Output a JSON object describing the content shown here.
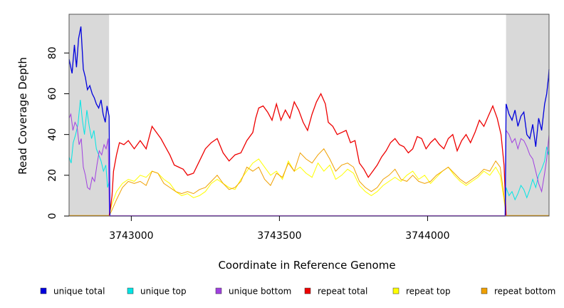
{
  "chart_data": {
    "type": "line",
    "title": "",
    "xlabel": "Coordinate in Reference Genome",
    "ylabel": "Read Coverage Depth",
    "xlim": [
      3742790,
      3744410
    ],
    "ylim": [
      0,
      99
    ],
    "x_ticks": [
      3743000,
      3743500,
      3744000
    ],
    "y_ticks": [
      0,
      20,
      40,
      60,
      80
    ],
    "shaded_regions": [
      [
        3742790,
        3742925
      ],
      [
        3744265,
        3744410
      ]
    ],
    "grid": false,
    "legend_position": "bottom",
    "colors": {
      "unique_total": "#0000dd",
      "unique_top": "#00e5e5",
      "unique_bottom": "#a040e0",
      "repeat_total": "#ee0000",
      "repeat_top": "#ffff00",
      "repeat_bottom": "#f0a000",
      "shade": "#d9d9d9"
    },
    "series": [
      {
        "name": "unique total",
        "key": "unique_total",
        "x": [
          3742790,
          3742800,
          3742808,
          3742815,
          3742822,
          3742830,
          3742838,
          3742845,
          3742852,
          3742860,
          3742868,
          3742875,
          3742882,
          3742890,
          3742898,
          3742905,
          3742912,
          3742918,
          3742925,
          3742928,
          3742932,
          3744262,
          3744265,
          3744275,
          3744285,
          3744295,
          3744305,
          3744315,
          3744325,
          3744335,
          3744345,
          3744355,
          3744365,
          3744375,
          3744385,
          3744395,
          3744402,
          3744408,
          3744410
        ],
        "y": [
          77,
          70,
          84,
          73,
          87,
          93,
          72,
          68,
          62,
          64,
          60,
          58,
          55,
          53,
          57,
          50,
          46,
          54,
          49,
          0,
          0,
          0,
          55,
          50,
          47,
          52,
          44,
          49,
          51,
          40,
          38,
          45,
          34,
          48,
          42,
          55,
          60,
          68,
          72
        ]
      },
      {
        "name": "unique top",
        "key": "unique_top",
        "x": [
          3742790,
          3742797,
          3742804,
          3742812,
          3742820,
          3742828,
          3742835,
          3742842,
          3742850,
          3742858,
          3742866,
          3742874,
          3742882,
          3742890,
          3742898,
          3742906,
          3742914,
          3742920,
          3742925,
          3742928,
          3742932,
          3744262,
          3744265,
          3744275,
          3744285,
          3744295,
          3744305,
          3744315,
          3744325,
          3744335,
          3744345,
          3744355,
          3744365,
          3744375,
          3744385,
          3744395,
          3744402,
          3744408,
          3744410
        ],
        "y": [
          29,
          26,
          36,
          40,
          45,
          57,
          47,
          40,
          52,
          44,
          38,
          42,
          33,
          30,
          27,
          22,
          25,
          14,
          17,
          0,
          0,
          0,
          14,
          10,
          12,
          8,
          11,
          15,
          13,
          9,
          13,
          18,
          14,
          20,
          23,
          27,
          34,
          30,
          33
        ]
      },
      {
        "name": "unique bottom",
        "key": "unique_bottom",
        "x": [
          3742790,
          3742796,
          3742803,
          3742810,
          3742817,
          3742824,
          3742831,
          3742838,
          3742845,
          3742852,
          3742860,
          3742868,
          3742876,
          3742884,
          3742892,
          3742900,
          3742908,
          3742915,
          3742922,
          3742926,
          3742930,
          3744262,
          3744265,
          3744275,
          3744285,
          3744295,
          3744305,
          3744315,
          3744325,
          3744335,
          3744345,
          3744355,
          3744365,
          3744375,
          3744385,
          3744395,
          3744402,
          3744408,
          3744410
        ],
        "y": [
          48,
          50,
          42,
          46,
          44,
          35,
          38,
          24,
          20,
          14,
          13,
          19,
          17,
          25,
          32,
          30,
          35,
          33,
          38,
          0,
          0,
          0,
          42,
          40,
          36,
          38,
          33,
          38,
          37,
          34,
          30,
          28,
          22,
          16,
          12,
          21,
          28,
          37,
          40
        ]
      },
      {
        "name": "repeat total",
        "key": "repeat_total",
        "x": [
          3742925,
          3742930,
          3742935,
          3742940,
          3742950,
          3742960,
          3742975,
          3742990,
          3743010,
          3743030,
          3743050,
          3743070,
          3743085,
          3743100,
          3743115,
          3743130,
          3743145,
          3743160,
          3743175,
          3743190,
          3743210,
          3743230,
          3743250,
          3743270,
          3743290,
          3743310,
          3743330,
          3743350,
          3743370,
          3743390,
          3743410,
          3743420,
          3743430,
          3743445,
          3743460,
          3743475,
          3743490,
          3743505,
          3743520,
          3743535,
          3743550,
          3743565,
          3743580,
          3743595,
          3743610,
          3743625,
          3743640,
          3743655,
          3743665,
          3743680,
          3743695,
          3743710,
          3743725,
          3743740,
          3743755,
          3743770,
          3743785,
          3743800,
          3743815,
          3743830,
          3743845,
          3743860,
          3743875,
          3743890,
          3743905,
          3743920,
          3743935,
          3743950,
          3743965,
          3743980,
          3743995,
          3744010,
          3744025,
          3744040,
          3744055,
          3744070,
          3744085,
          3744100,
          3744115,
          3744130,
          3744145,
          3744160,
          3744175,
          3744190,
          3744205,
          3744220,
          3744235,
          3744248,
          3744258,
          3744265
        ],
        "y": [
          0,
          4,
          10,
          22,
          30,
          36,
          35,
          37,
          33,
          37,
          33,
          44,
          41,
          38,
          34,
          30,
          25,
          24,
          23,
          20,
          21,
          27,
          33,
          36,
          38,
          31,
          27,
          30,
          31,
          37,
          41,
          48,
          53,
          54,
          51,
          47,
          55,
          47,
          52,
          48,
          56,
          52,
          46,
          42,
          50,
          56,
          60,
          55,
          46,
          44,
          40,
          41,
          42,
          36,
          37,
          26,
          23,
          19,
          22,
          25,
          29,
          32,
          36,
          38,
          35,
          34,
          31,
          33,
          39,
          38,
          33,
          36,
          38,
          35,
          33,
          38,
          40,
          32,
          37,
          40,
          36,
          41,
          47,
          44,
          49,
          54,
          48,
          40,
          25,
          0
        ]
      },
      {
        "name": "repeat top",
        "key": "repeat_top",
        "x": [
          3742925,
          3742935,
          3742950,
          3742970,
          3742990,
          3743010,
          3743030,
          3743050,
          3743070,
          3743090,
          3743110,
          3743130,
          3743150,
          3743170,
          3743190,
          3743210,
          3743230,
          3743250,
          3743270,
          3743290,
          3743310,
          3743330,
          3743350,
          3743370,
          3743390,
          3743410,
          3743430,
          3743450,
          3743470,
          3743490,
          3743510,
          3743530,
          3743550,
          3743570,
          3743590,
          3743610,
          3743630,
          3743650,
          3743670,
          3743690,
          3743710,
          3743730,
          3743750,
          3743770,
          3743790,
          3743810,
          3743830,
          3743850,
          3743870,
          3743890,
          3743910,
          3743930,
          3743950,
          3743970,
          3743990,
          3744010,
          3744030,
          3744050,
          3744070,
          3744090,
          3744110,
          3744130,
          3744150,
          3744170,
          3744190,
          3744210,
          3744230,
          3744245,
          3744258,
          3744265
        ],
        "y": [
          0,
          6,
          12,
          16,
          18,
          17,
          20,
          19,
          22,
          21,
          18,
          16,
          12,
          10,
          11,
          9,
          10,
          12,
          16,
          18,
          16,
          14,
          13,
          18,
          22,
          26,
          28,
          24,
          20,
          22,
          18,
          27,
          22,
          24,
          21,
          19,
          26,
          22,
          25,
          18,
          20,
          23,
          21,
          15,
          12,
          10,
          12,
          15,
          17,
          19,
          17,
          20,
          22,
          18,
          20,
          16,
          19,
          22,
          24,
          20,
          17,
          15,
          17,
          19,
          22,
          20,
          24,
          20,
          8,
          0
        ]
      },
      {
        "name": "repeat bottom",
        "key": "repeat_bottom",
        "x": [
          3742925,
          3742935,
          3742950,
          3742970,
          3742990,
          3743010,
          3743030,
          3743050,
          3743070,
          3743090,
          3743110,
          3743130,
          3743150,
          3743170,
          3743190,
          3743210,
          3743230,
          3743250,
          3743270,
          3743290,
          3743310,
          3743330,
          3743350,
          3743370,
          3743390,
          3743410,
          3743430,
          3743450,
          3743470,
          3743490,
          3743510,
          3743530,
          3743550,
          3743570,
          3743590,
          3743610,
          3743630,
          3743650,
          3743670,
          3743690,
          3743710,
          3743730,
          3743750,
          3743770,
          3743790,
          3743810,
          3743830,
          3743850,
          3743870,
          3743890,
          3743910,
          3743930,
          3743950,
          3743970,
          3743990,
          3744010,
          3744030,
          3744050,
          3744070,
          3744090,
          3744110,
          3744130,
          3744150,
          3744170,
          3744190,
          3744210,
          3744230,
          3744245,
          3744258,
          3744265
        ],
        "y": [
          0,
          3,
          8,
          14,
          17,
          16,
          17,
          15,
          22,
          21,
          16,
          14,
          12,
          11,
          12,
          11,
          13,
          14,
          17,
          20,
          16,
          13,
          14,
          17,
          24,
          22,
          24,
          18,
          15,
          21,
          19,
          26,
          22,
          31,
          28,
          26,
          30,
          33,
          28,
          22,
          25,
          26,
          24,
          17,
          14,
          12,
          14,
          18,
          20,
          23,
          18,
          17,
          20,
          17,
          16,
          17,
          20,
          22,
          24,
          21,
          18,
          16,
          18,
          20,
          23,
          22,
          27,
          24,
          10,
          0
        ]
      }
    ]
  }
}
